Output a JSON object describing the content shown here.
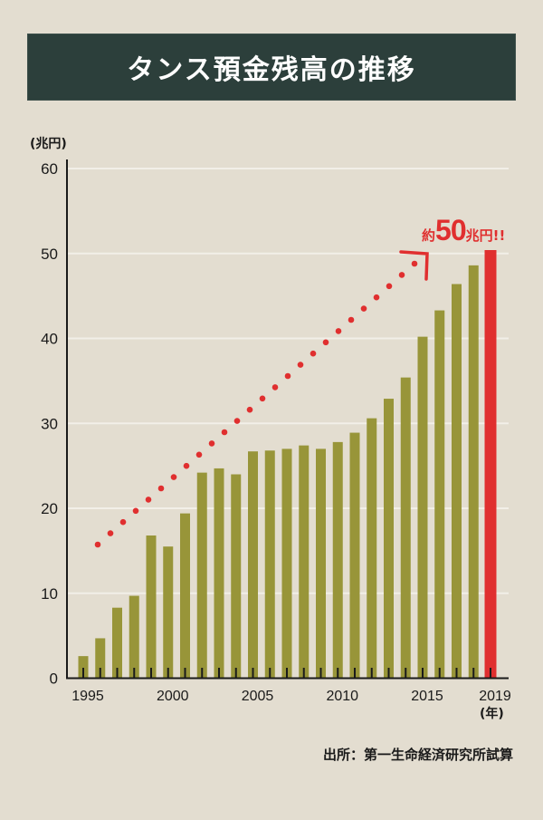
{
  "title": "タンス預金残高の推移",
  "source": "出所：第一生命経済研究所試算",
  "annotation": {
    "prefix": "約",
    "number": "50",
    "suffix": "兆円!!"
  },
  "colors": {
    "background": "#e3ddd0",
    "title_bar": "#2c3f3b",
    "bar": "#989539",
    "highlight": "#e02f2f",
    "gridline": "#f2efe8",
    "axis": "#1a1a1a"
  },
  "chart_data": {
    "type": "bar",
    "title": "タンス預金残高の推移",
    "xlabel": "(年)",
    "ylabel": "(兆円)",
    "ylim": [
      0,
      60
    ],
    "yticks": [
      0,
      10,
      20,
      30,
      40,
      50,
      60
    ],
    "grid": true,
    "categories": [
      "1995",
      "1996",
      "1997",
      "1998",
      "1999",
      "2000",
      "2001",
      "2002",
      "2003",
      "2004",
      "2005",
      "2006",
      "2007",
      "2008",
      "2009",
      "2010",
      "2011",
      "2012",
      "2013",
      "2014",
      "2015",
      "2016",
      "2017",
      "2018",
      "2019"
    ],
    "xtick_labels": [
      "1995",
      "2000",
      "2005",
      "2010",
      "2015",
      "2019"
    ],
    "values": [
      2.6,
      4.7,
      8.3,
      9.7,
      16.8,
      15.5,
      19.4,
      24.2,
      24.7,
      24.0,
      26.7,
      26.8,
      27.0,
      27.4,
      27.0,
      27.8,
      28.9,
      30.6,
      32.9,
      35.4,
      40.2,
      43.3,
      46.4,
      48.6,
      50.4
    ],
    "highlight_category": "2019",
    "annotations": [
      {
        "text": "約50兆円!!",
        "target": "2019"
      },
      {
        "type": "dotted-trend-arrow",
        "from": "1996",
        "to": "2015",
        "meaning": "upward trend"
      }
    ]
  }
}
